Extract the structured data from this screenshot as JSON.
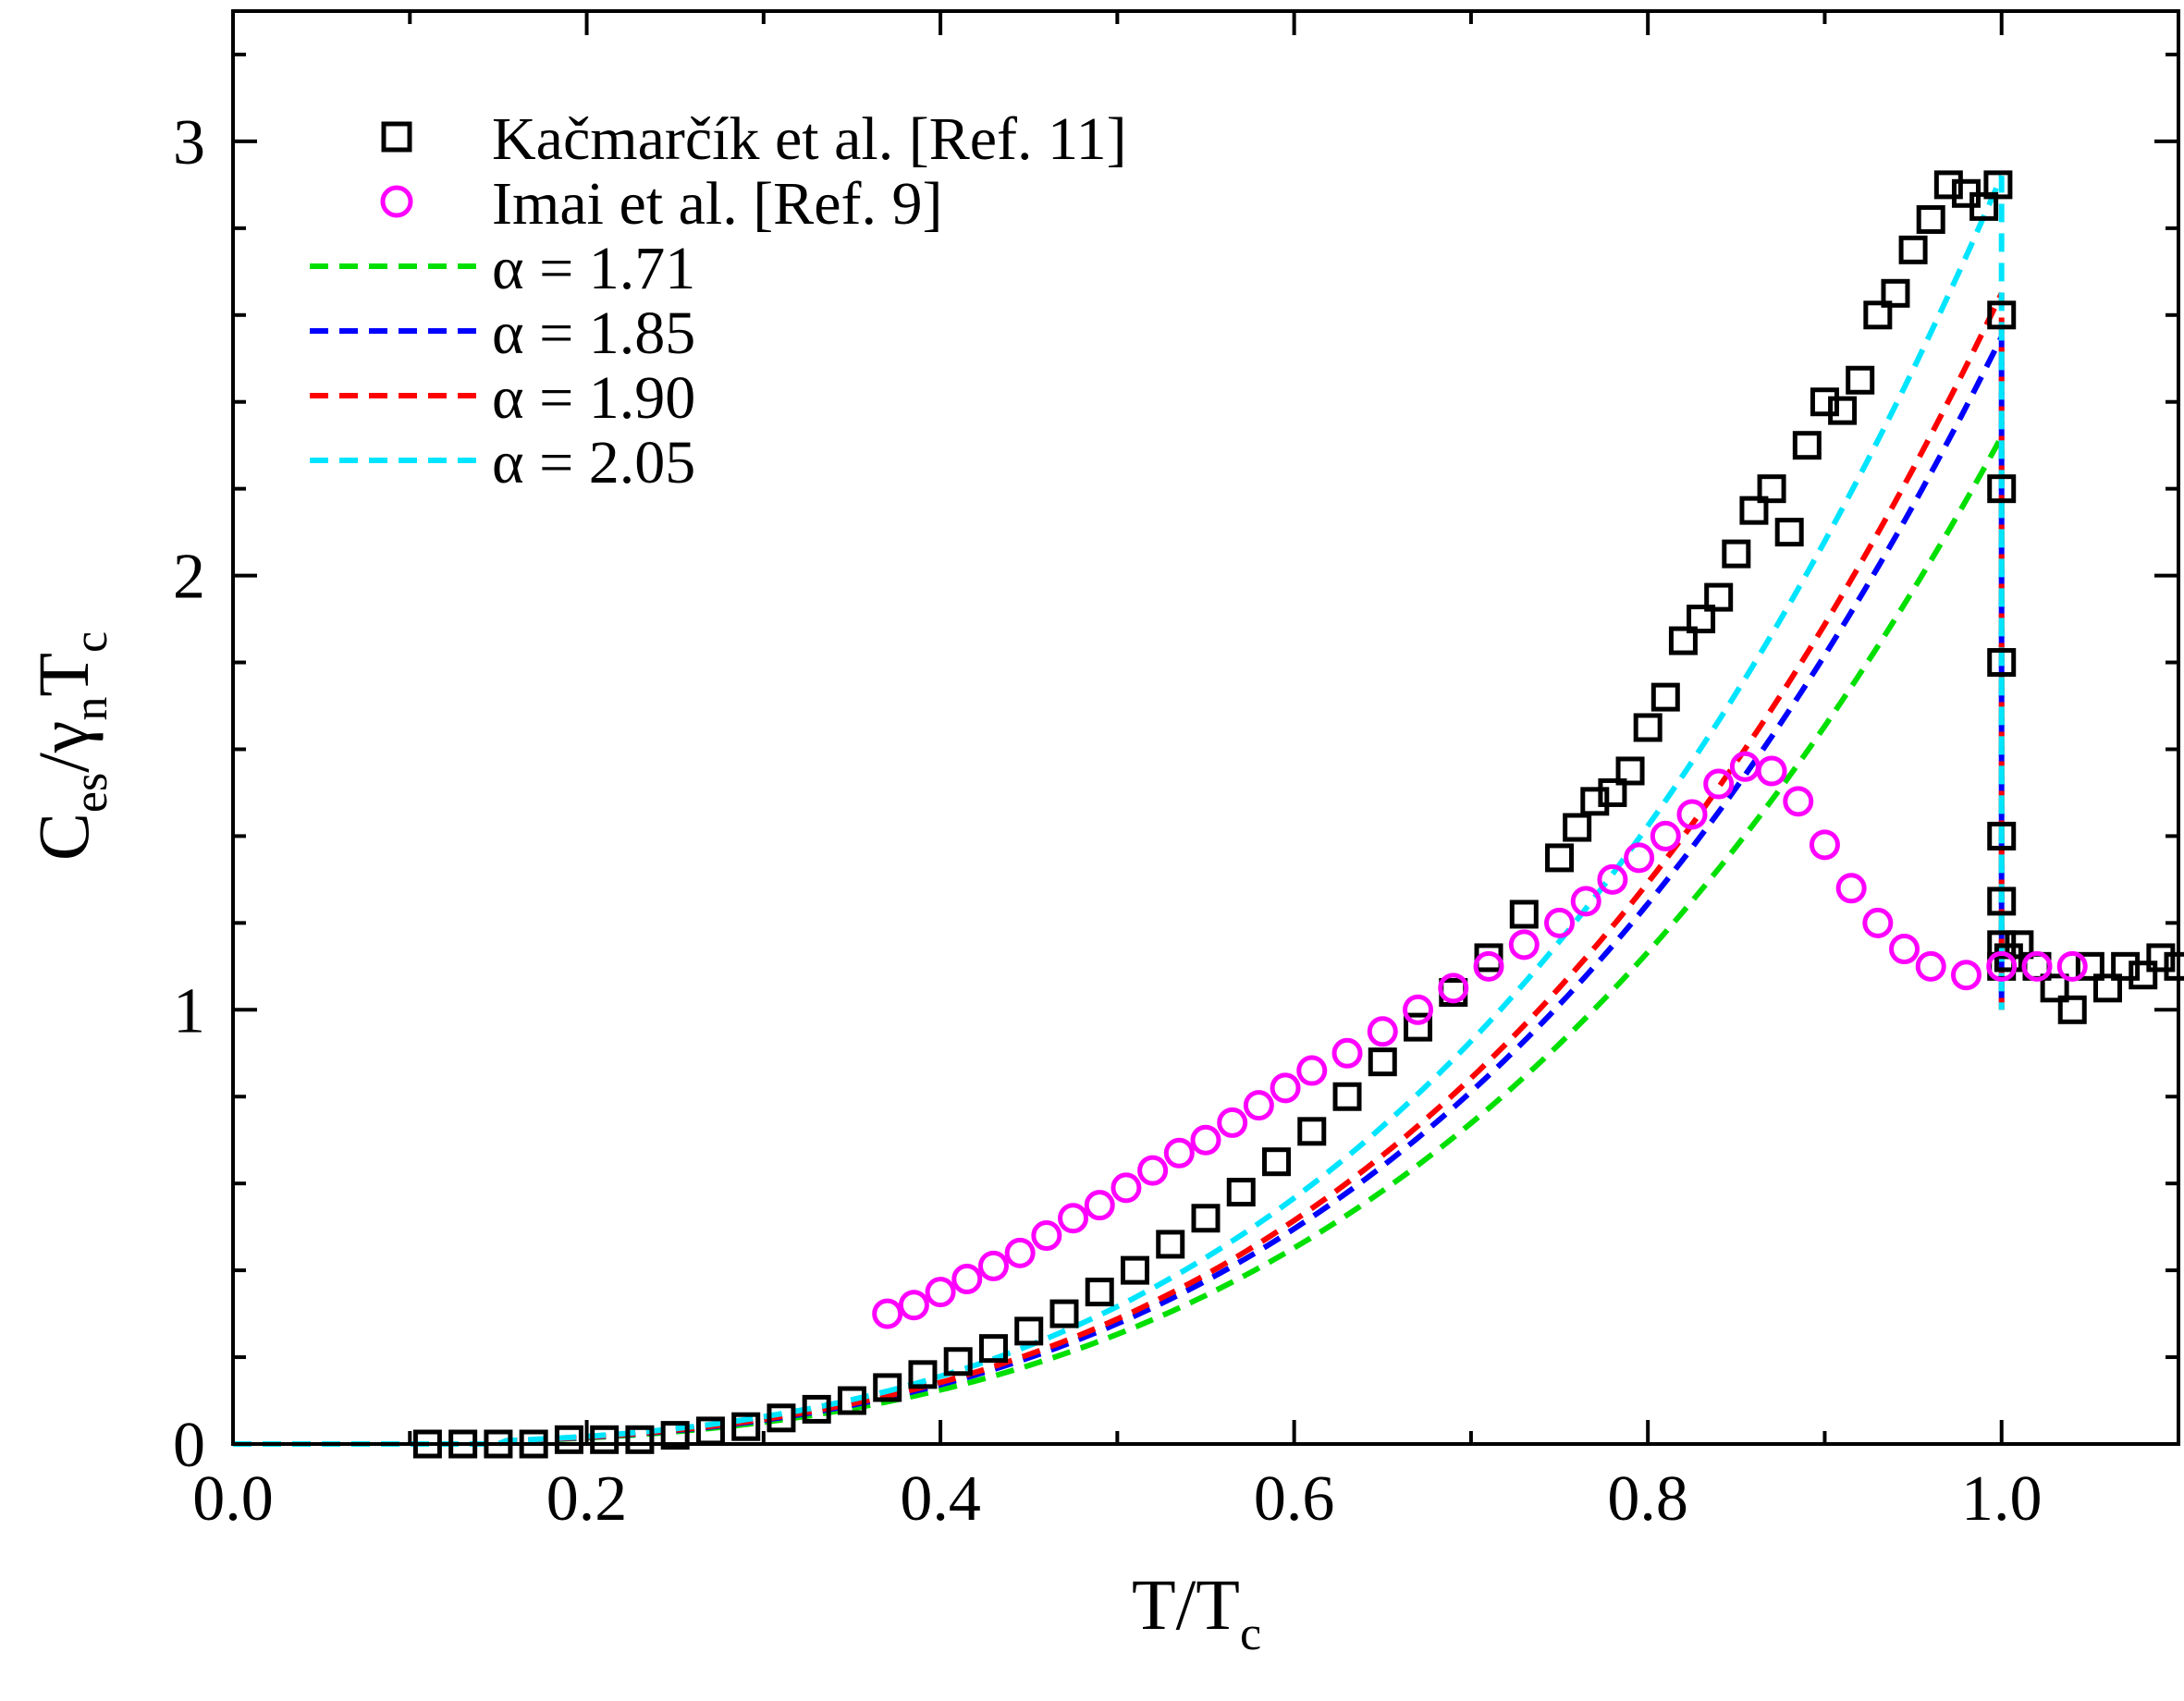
{
  "chart_data": {
    "type": "scatter",
    "title": "",
    "xlabel": {
      "main": "T/T",
      "sub": "c"
    },
    "ylabel": {
      "parts": [
        "C",
        "es",
        "/",
        "γ",
        "n",
        "T",
        "c"
      ]
    },
    "xlim": [
      0.0,
      1.1
    ],
    "ylim": [
      0,
      3.3
    ],
    "x_ticks": [
      0.0,
      0.2,
      0.4,
      0.6,
      0.8,
      1.0
    ],
    "x_tick_labels": [
      "0.0",
      "0.2",
      "0.4",
      "0.6",
      "0.8",
      "1.0"
    ],
    "y_ticks": [
      0,
      1,
      2,
      3
    ],
    "y_tick_labels": [
      "0",
      "1",
      "2",
      "3"
    ],
    "legend_position": "top-left",
    "series": [
      {
        "name": "Kačmarčík et al. [Ref. 11]",
        "kind": "scatter",
        "marker": "square",
        "color": "#000000",
        "x": [
          0.11,
          0.13,
          0.15,
          0.17,
          0.19,
          0.21,
          0.23,
          0.25,
          0.27,
          0.29,
          0.31,
          0.33,
          0.35,
          0.37,
          0.39,
          0.41,
          0.43,
          0.45,
          0.47,
          0.49,
          0.51,
          0.53,
          0.55,
          0.57,
          0.59,
          0.61,
          0.63,
          0.65,
          0.67,
          0.69,
          0.71,
          0.73,
          0.75,
          0.76,
          0.77,
          0.78,
          0.79,
          0.8,
          0.81,
          0.82,
          0.83,
          0.84,
          0.85,
          0.86,
          0.87,
          0.88,
          0.89,
          0.9,
          0.91,
          0.92,
          0.93,
          0.94,
          0.95,
          0.96,
          0.97,
          0.98,
          0.99,
          0.998,
          1.0,
          1.0,
          1.0,
          1.0,
          1.0,
          1.0,
          1.0,
          1.004,
          1.01,
          1.02,
          1.03,
          1.04,
          1.05,
          1.06,
          1.07,
          1.08,
          1.09,
          1.1
        ],
        "y": [
          0.0,
          0.0,
          0.0,
          0.0,
          0.01,
          0.01,
          0.01,
          0.02,
          0.03,
          0.04,
          0.06,
          0.08,
          0.1,
          0.13,
          0.16,
          0.19,
          0.22,
          0.26,
          0.3,
          0.35,
          0.4,
          0.46,
          0.52,
          0.58,
          0.65,
          0.72,
          0.8,
          0.88,
          0.96,
          1.04,
          1.12,
          1.22,
          1.35,
          1.42,
          1.48,
          1.5,
          1.55,
          1.65,
          1.72,
          1.85,
          1.9,
          1.95,
          2.05,
          2.15,
          2.2,
          2.1,
          2.3,
          2.4,
          2.38,
          2.45,
          2.6,
          2.65,
          2.75,
          2.82,
          2.9,
          2.88,
          2.85,
          2.9,
          2.6,
          2.2,
          1.8,
          1.4,
          1.25,
          1.15,
          1.1,
          1.12,
          1.15,
          1.1,
          1.05,
          1.0,
          1.1,
          1.05,
          1.1,
          1.08,
          1.12,
          1.1
        ]
      },
      {
        "name": "Imai et al. [Ref. 9]",
        "kind": "scatter",
        "marker": "circle",
        "color": "#ff00ff",
        "x": [
          0.37,
          0.385,
          0.4,
          0.415,
          0.43,
          0.445,
          0.46,
          0.475,
          0.49,
          0.505,
          0.52,
          0.535,
          0.55,
          0.565,
          0.58,
          0.595,
          0.61,
          0.63,
          0.65,
          0.67,
          0.69,
          0.71,
          0.73,
          0.75,
          0.765,
          0.78,
          0.795,
          0.81,
          0.825,
          0.84,
          0.855,
          0.87,
          0.885,
          0.9,
          0.915,
          0.93,
          0.945,
          0.96,
          0.98,
          1.0,
          1.02,
          1.04
        ],
        "y": [
          0.3,
          0.32,
          0.35,
          0.38,
          0.41,
          0.44,
          0.48,
          0.52,
          0.55,
          0.59,
          0.63,
          0.67,
          0.7,
          0.74,
          0.78,
          0.82,
          0.86,
          0.9,
          0.95,
          1.0,
          1.05,
          1.1,
          1.15,
          1.2,
          1.25,
          1.3,
          1.35,
          1.4,
          1.45,
          1.52,
          1.56,
          1.55,
          1.48,
          1.38,
          1.28,
          1.2,
          1.14,
          1.1,
          1.08,
          1.1,
          1.1,
          1.1
        ]
      }
    ],
    "fits": [
      {
        "name": "α = 1.71",
        "alpha": 1.71,
        "color": "#00e000",
        "peak": 2.32
      },
      {
        "name": "α = 1.85",
        "alpha": 1.85,
        "color": "#0000ff",
        "peak": 2.55
      },
      {
        "name": "α = 1.90",
        "alpha": 1.9,
        "color": "#ff0000",
        "peak": 2.65
      },
      {
        "name": "α = 2.05",
        "alpha": 2.05,
        "color": "#00e5ff",
        "peak": 2.92
      }
    ],
    "legend": [
      {
        "label": "Kačmarčík et al. [Ref. 11]",
        "marker": "square",
        "color": "#000000"
      },
      {
        "label": "Imai et al. [Ref. 9]",
        "marker": "circle",
        "color": "#ff00ff"
      },
      {
        "label": "α = 1.71",
        "marker": "dashed-line",
        "color": "#00e000"
      },
      {
        "label": "α = 1.85",
        "marker": "dashed-line",
        "color": "#0000ff"
      },
      {
        "label": "α = 1.90",
        "marker": "dashed-line",
        "color": "#ff0000"
      },
      {
        "label": "α = 2.05",
        "marker": "dashed-line",
        "color": "#00e5ff"
      }
    ]
  }
}
